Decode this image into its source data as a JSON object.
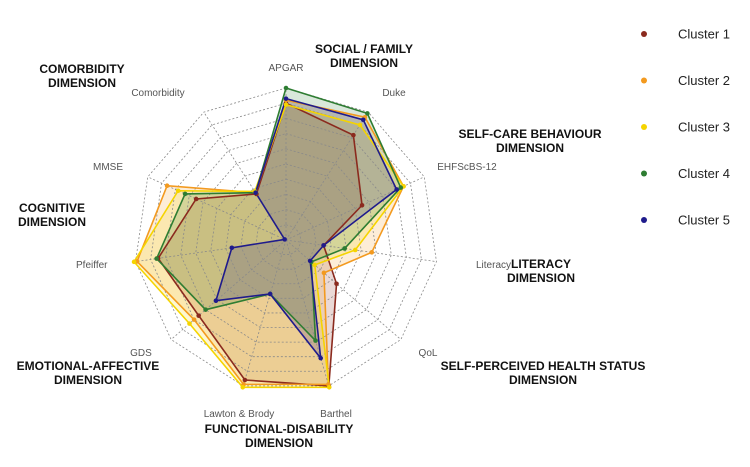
{
  "chart_data": {
    "type": "radar",
    "title": "",
    "axes": [
      "APGAR",
      "Duke",
      "EHFScBS-12",
      "Literacy",
      "QoL",
      "Barthel",
      "Lawton & Brody",
      "GDS",
      "Pfeiffer",
      "MMSE",
      "Comorbidity"
    ],
    "rmax": 10,
    "grid_levels": 10,
    "grid": true,
    "legend_position": "right",
    "dimensions": [
      {
        "label": "SOCIAL / FAMILY\nDIMENSION"
      },
      {
        "label": "SELF-CARE BEHAVIOUR\nDIMENSION"
      },
      {
        "label": "LITERACY\nDIMENSION"
      },
      {
        "label": "SELF-PERCEIVED HEALTH STATUS\nDIMENSION"
      },
      {
        "label": "FUNCTIONAL-DISABILITY\nDIMENSION"
      },
      {
        "label": "EMOTIONAL-AFFECTIVE\nDIMENSION"
      },
      {
        "label": "COGNITIVE\nDIMENSION"
      },
      {
        "label": "COMORBIDITY\nDIMENSION"
      }
    ],
    "series": [
      {
        "name": "Cluster 1",
        "color": "#8B2A1E",
        "values": [
          9.0,
          8.2,
          5.5,
          2.5,
          4.4,
          10.0,
          9.6,
          7.6,
          8.5,
          6.5,
          3.6
        ]
      },
      {
        "name": "Cluster 2",
        "color": "#F39A1F",
        "values": [
          9.2,
          9.6,
          8.5,
          5.7,
          3.3,
          9.9,
          9.9,
          8.0,
          9.9,
          8.6,
          3.7
        ]
      },
      {
        "name": "Cluster 3",
        "color": "#F5D400",
        "values": [
          8.9,
          9.0,
          8.5,
          4.6,
          2.5,
          10.1,
          10.1,
          8.4,
          10.1,
          7.8,
          3.8
        ]
      },
      {
        "name": "Cluster 4",
        "color": "#2E7D32",
        "values": [
          10.0,
          9.9,
          8.3,
          3.9,
          2.2,
          6.9,
          3.7,
          7.0,
          8.6,
          7.3,
          3.7
        ]
      },
      {
        "name": "Cluster 5",
        "color": "#1F1B8C",
        "values": [
          9.3,
          9.4,
          8.0,
          2.5,
          2.1,
          8.1,
          3.7,
          6.1,
          3.6,
          0.1,
          3.7
        ]
      }
    ]
  }
}
